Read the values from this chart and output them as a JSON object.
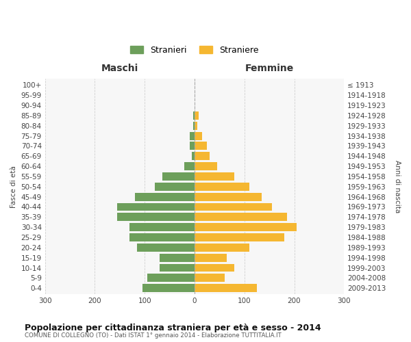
{
  "age_groups": [
    "0-4",
    "5-9",
    "10-14",
    "15-19",
    "20-24",
    "25-29",
    "30-34",
    "35-39",
    "40-44",
    "45-49",
    "50-54",
    "55-59",
    "60-64",
    "65-69",
    "70-74",
    "75-79",
    "80-84",
    "85-89",
    "90-94",
    "95-99",
    "100+"
  ],
  "birth_years": [
    "2009-2013",
    "2004-2008",
    "1999-2003",
    "1994-1998",
    "1989-1993",
    "1984-1988",
    "1979-1983",
    "1974-1978",
    "1969-1973",
    "1964-1968",
    "1959-1963",
    "1954-1958",
    "1949-1953",
    "1944-1948",
    "1939-1943",
    "1934-1938",
    "1929-1933",
    "1924-1928",
    "1919-1923",
    "1914-1918",
    "≤ 1913"
  ],
  "maschi": [
    105,
    95,
    70,
    70,
    115,
    130,
    130,
    155,
    155,
    120,
    80,
    65,
    20,
    5,
    10,
    10,
    3,
    3,
    0,
    0,
    0
  ],
  "femmine": [
    125,
    60,
    80,
    65,
    110,
    180,
    205,
    185,
    155,
    135,
    110,
    80,
    45,
    30,
    25,
    15,
    5,
    8,
    0,
    0,
    0
  ],
  "color_maschi": "#6d9f5b",
  "color_femmine": "#f5b731",
  "title": "Popolazione per cittadinanza straniera per età e sesso - 2014",
  "subtitle": "COMUNE DI COLLEGNO (TO) - Dati ISTAT 1° gennaio 2014 - Elaborazione TUTTITALIA.IT",
  "ylabel_left": "Fasce di età",
  "ylabel_right": "Anni di nascita",
  "xlabel_left": "Maschi",
  "xlabel_right": "Femmine",
  "legend_maschi": "Stranieri",
  "legend_femmine": "Straniere",
  "xlim": 300,
  "bg_color": "#ffffff",
  "plot_bg_color": "#f7f7f7",
  "grid_color": "#d0d0d0",
  "bar_height": 0.8
}
